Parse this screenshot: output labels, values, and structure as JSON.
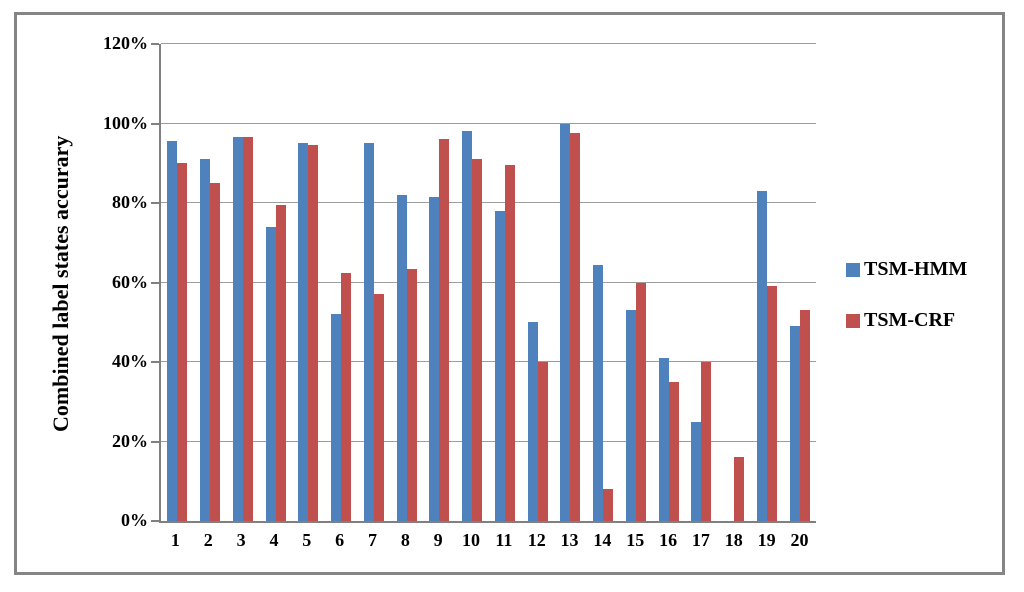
{
  "figure": {
    "border_color": "#858585",
    "axis_color": "#808080",
    "gridline_color": "#9c9c9c",
    "background": "#ffffff"
  },
  "chart_data": {
    "type": "bar",
    "title": "",
    "xlabel": "",
    "ylabel": "Combined label states accurary",
    "categories": [
      "1",
      "2",
      "3",
      "4",
      "5",
      "6",
      "7",
      "8",
      "9",
      "10",
      "11",
      "12",
      "13",
      "14",
      "15",
      "16",
      "17",
      "18",
      "19",
      "20"
    ],
    "series": [
      {
        "name": "TSM-HMM",
        "color": "#4F81BD",
        "values": [
          95.5,
          91,
          96.5,
          74,
          95,
          52,
          95,
          82,
          81.5,
          98,
          78,
          50,
          100,
          64.5,
          53,
          41,
          25,
          0,
          83,
          49
        ]
      },
      {
        "name": "TSM-CRF",
        "color": "#C0504D",
        "values": [
          90,
          85,
          96.5,
          79.5,
          94.5,
          62.5,
          57,
          63.5,
          96,
          91,
          89.5,
          40,
          97.5,
          8,
          60,
          35,
          40,
          16,
          59,
          53
        ]
      }
    ],
    "ylim": [
      0,
      120
    ],
    "ytick_step": 20,
    "ytick_labels": [
      "0%",
      "20%",
      "40%",
      "60%",
      "80%",
      "100%",
      "120%"
    ],
    "grid": true,
    "legend_position": "right"
  }
}
